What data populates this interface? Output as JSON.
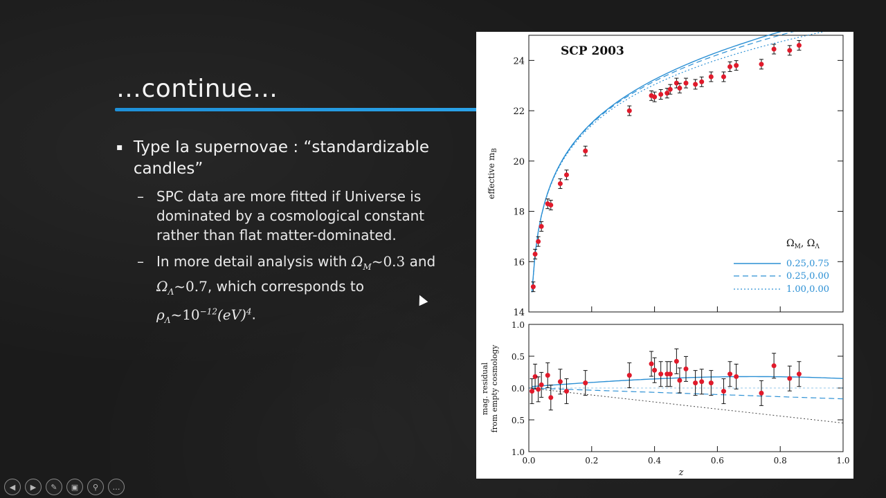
{
  "slide": {
    "title": "…continue…",
    "bullet1": "Type Ia supernovae : “standardizable candles”",
    "sub1": "SPC data are more fitted if Universe is dominated by a cosmological constant rather than flat matter-dominated.",
    "sub2_part1": "In more detail analysis with ",
    "sub2_part2": " and ",
    "sub2_part3": ", which corresponds to ",
    "omega_m": "Ω",
    "omega_m_sub": "M",
    "omega_m_val": "~0.3",
    "omega_l": "Ω",
    "omega_l_sub": "Λ",
    "omega_l_val": "~0.7",
    "rho": "ρ",
    "rho_sub": "Λ",
    "rho_val": "~10",
    "rho_exp": "−12",
    "rho_unit": "(eV)",
    "rho_unit_exp": "4",
    "rho_end": "."
  },
  "nav": {
    "prev": "◀",
    "next": "▶",
    "pen": "✎",
    "slides": "▣",
    "zoom": "⚲",
    "more": "…"
  },
  "chart_data": {
    "type": "scatter",
    "title": "SCP 2003",
    "top_panel": {
      "ylabel": "effective m",
      "ylabel_sub": "B",
      "ylim": [
        14,
        25
      ],
      "yticks": [
        "14",
        "16",
        "18",
        "20",
        "22",
        "24"
      ],
      "legend_header": "Ω",
      "legend_header_sub1": "M",
      "legend_header_sep": ", Ω",
      "legend_header_sub2": "Λ",
      "legend": [
        "0.25,0.75",
        "0.25,0.00",
        "1.00,0.00"
      ],
      "points": [
        [
          0.014,
          15.0
        ],
        [
          0.02,
          16.3
        ],
        [
          0.03,
          16.8
        ],
        [
          0.04,
          17.4
        ],
        [
          0.06,
          18.3
        ],
        [
          0.07,
          18.25
        ],
        [
          0.1,
          19.1
        ],
        [
          0.12,
          19.45
        ],
        [
          0.18,
          20.4
        ],
        [
          0.32,
          22.0
        ],
        [
          0.39,
          22.6
        ],
        [
          0.4,
          22.55
        ],
        [
          0.42,
          22.65
        ],
        [
          0.44,
          22.7
        ],
        [
          0.45,
          22.85
        ],
        [
          0.47,
          23.1
        ],
        [
          0.48,
          22.9
        ],
        [
          0.5,
          23.1
        ],
        [
          0.53,
          23.05
        ],
        [
          0.55,
          23.15
        ],
        [
          0.58,
          23.35
        ],
        [
          0.62,
          23.35
        ],
        [
          0.64,
          23.75
        ],
        [
          0.66,
          23.8
        ],
        [
          0.74,
          23.85
        ],
        [
          0.78,
          24.45
        ],
        [
          0.83,
          24.4
        ],
        [
          0.86,
          24.6
        ]
      ]
    },
    "bottom_panel": {
      "ylabel1": "mag. residual",
      "ylabel2": "from empty cosmology",
      "ylim": [
        -1.0,
        1.0
      ],
      "yticks": [
        "1.0",
        "0.5",
        "0.0",
        "0.5",
        "1.0"
      ],
      "xlabel": "z",
      "xticks": [
        "0.0",
        "0.2",
        "0.4",
        "0.6",
        "0.8",
        "1.0"
      ],
      "xlim": [
        0,
        1
      ],
      "points": [
        [
          0.01,
          -0.05
        ],
        [
          0.02,
          0.18
        ],
        [
          0.03,
          -0.02
        ],
        [
          0.04,
          0.05
        ],
        [
          0.06,
          0.2
        ],
        [
          0.07,
          -0.15
        ],
        [
          0.1,
          0.1
        ],
        [
          0.12,
          -0.05
        ],
        [
          0.18,
          0.08
        ],
        [
          0.32,
          0.2
        ],
        [
          0.39,
          0.38
        ],
        [
          0.4,
          0.28
        ],
        [
          0.42,
          0.22
        ],
        [
          0.44,
          0.22
        ],
        [
          0.45,
          0.22
        ],
        [
          0.47,
          0.42
        ],
        [
          0.48,
          0.12
        ],
        [
          0.5,
          0.3
        ],
        [
          0.53,
          0.08
        ],
        [
          0.55,
          0.1
        ],
        [
          0.58,
          0.08
        ],
        [
          0.62,
          -0.05
        ],
        [
          0.64,
          0.22
        ],
        [
          0.66,
          0.18
        ],
        [
          0.74,
          -0.08
        ],
        [
          0.78,
          0.35
        ],
        [
          0.83,
          0.15
        ],
        [
          0.86,
          0.22
        ]
      ]
    }
  }
}
